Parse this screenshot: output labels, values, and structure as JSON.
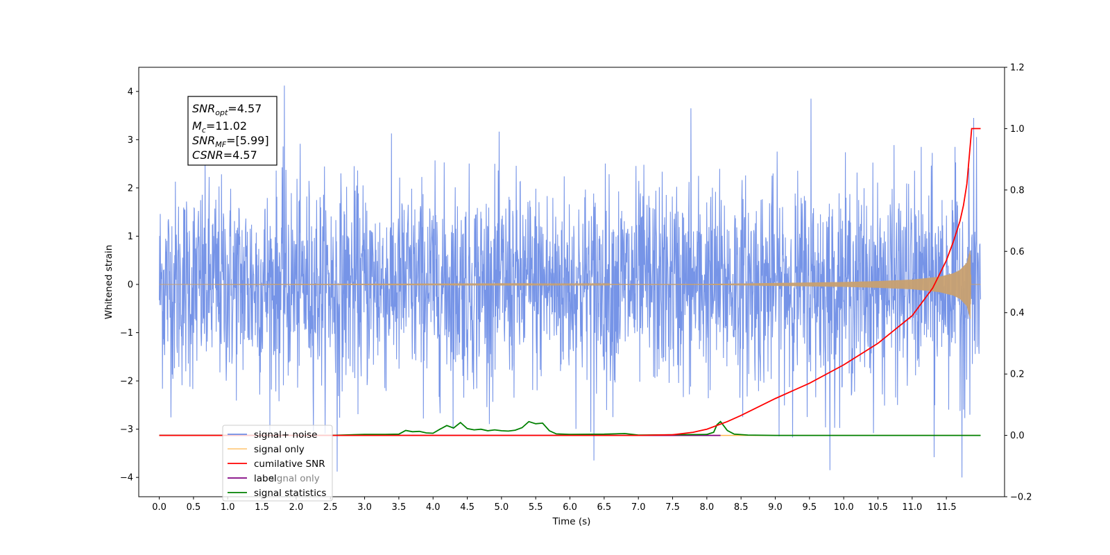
{
  "chart_data": {
    "type": "line",
    "xlabel": "Time (s)",
    "ylabel": "Whitened strain",
    "xlim": [
      -0.3,
      12.35
    ],
    "ylim": [
      -4.4,
      4.5
    ],
    "y2lim": [
      -0.2,
      1.2
    ],
    "x_ticks": [
      0.0,
      0.5,
      1.0,
      1.5,
      2.0,
      2.5,
      3.0,
      3.5,
      4.0,
      4.5,
      5.0,
      5.5,
      6.0,
      6.5,
      7.0,
      7.5,
      8.0,
      8.5,
      9.0,
      9.5,
      10.0,
      10.5,
      11.0,
      11.5
    ],
    "x_tick_labels": [
      "0.0",
      "0.5",
      "1.0",
      "1.5",
      "2.0",
      "2.5",
      "3.0",
      "3.5",
      "4.0",
      "4.5",
      "5.0",
      "5.5",
      "6.0",
      "6.5",
      "7.0",
      "7.5",
      "8.0",
      "8.5",
      "9.0",
      "9.5",
      "10.0",
      "10.5",
      "11.0",
      "11.5"
    ],
    "y_ticks": [
      -4,
      -3,
      -2,
      -1,
      0,
      1,
      2,
      3,
      4
    ],
    "y_tick_labels": [
      "−4",
      "−3",
      "−2",
      "−1",
      "0",
      "1",
      "2",
      "3",
      "4"
    ],
    "y2_ticks": [
      -0.2,
      0.0,
      0.2,
      0.4,
      0.6,
      0.8,
      1.0,
      1.2
    ],
    "y2_tick_labels": [
      "−0.2",
      "0.0",
      "0.2",
      "0.4",
      "0.6",
      "0.8",
      "1.0",
      "1.2"
    ],
    "grid": false,
    "legend_position": "lower-left",
    "series": [
      {
        "name": "signal+ noise",
        "axis": "left",
        "color": "#6f8ee6",
        "x_range": [
          0.0,
          12.0
        ],
        "description_values": {
          "typical_amplitude_range": [
            -2.5,
            2.5
          ],
          "peak_max": 4.12,
          "peak_min": -4.0
        },
        "notable_peaks": [
          [
            1.83,
            4.12
          ],
          [
            11.73,
            -4.0
          ],
          [
            2.6,
            -3.88
          ],
          [
            9.8,
            -3.85
          ],
          [
            6.35,
            -3.65
          ],
          [
            11.32,
            -3.58
          ],
          [
            7.77,
            3.65
          ],
          [
            9.52,
            3.85
          ],
          [
            11.9,
            3.45
          ]
        ]
      },
      {
        "name": "signal only",
        "axis": "left",
        "color": "#ffb74d",
        "x_range": [
          0.0,
          12.0
        ],
        "envelope": [
          [
            0.0,
            0.0
          ],
          [
            8.0,
            0.01
          ],
          [
            9.0,
            0.03
          ],
          [
            10.0,
            0.05
          ],
          [
            10.5,
            0.07
          ],
          [
            11.0,
            0.1
          ],
          [
            11.4,
            0.16
          ],
          [
            11.6,
            0.23
          ],
          [
            11.7,
            0.3
          ],
          [
            11.8,
            0.45
          ],
          [
            11.85,
            0.72
          ],
          [
            11.86,
            0.0
          ],
          [
            12.0,
            0.0
          ]
        ]
      },
      {
        "name": "cumilative SNR",
        "axis": "right",
        "color": "#ff0000",
        "x": [
          0.0,
          7.0,
          7.5,
          7.8,
          8.0,
          8.3,
          8.5,
          9.0,
          9.5,
          10.0,
          10.5,
          11.0,
          11.3,
          11.5,
          11.6,
          11.7,
          11.75,
          11.8,
          11.85,
          11.87,
          12.0
        ],
        "y": [
          0.0,
          0.0,
          0.002,
          0.01,
          0.02,
          0.045,
          0.065,
          0.12,
          0.17,
          0.23,
          0.3,
          0.39,
          0.48,
          0.57,
          0.63,
          0.7,
          0.75,
          0.82,
          0.95,
          1.0,
          1.0
        ]
      },
      {
        "name": "label",
        "axis": "right",
        "color": "#800080",
        "x": [
          0.0,
          8.2
        ],
        "y": [
          0.0,
          0.0
        ]
      },
      {
        "name": "signal only",
        "axis": "right",
        "color": "#ffb74d",
        "hidden_behind_legend": true,
        "x": [
          0.0,
          12.0
        ],
        "y": [
          0.0,
          0.0
        ]
      },
      {
        "name": "signal statistics",
        "axis": "right",
        "color": "#008000",
        "x": [
          0.0,
          2.5,
          3.0,
          3.3,
          3.5,
          3.6,
          3.7,
          3.8,
          3.9,
          4.0,
          4.1,
          4.2,
          4.3,
          4.4,
          4.5,
          4.6,
          4.7,
          4.8,
          4.9,
          5.0,
          5.1,
          5.2,
          5.3,
          5.4,
          5.5,
          5.6,
          5.7,
          5.8,
          6.0,
          6.5,
          6.8,
          7.0,
          8.0,
          8.1,
          8.15,
          8.2,
          8.3,
          8.4,
          8.6,
          9.0,
          12.0
        ],
        "y": [
          0.0,
          0.0,
          0.003,
          0.003,
          0.004,
          0.016,
          0.012,
          0.013,
          0.008,
          0.007,
          0.02,
          0.032,
          0.024,
          0.042,
          0.022,
          0.018,
          0.02,
          0.015,
          0.018,
          0.015,
          0.014,
          0.017,
          0.025,
          0.045,
          0.038,
          0.04,
          0.015,
          0.005,
          0.003,
          0.004,
          0.006,
          0.001,
          0.003,
          0.01,
          0.035,
          0.045,
          0.016,
          0.004,
          0.001,
          0.0,
          0.0
        ]
      }
    ],
    "annotation": {
      "lines": [
        {
          "sym": "SNR",
          "sub": "opt",
          "rest": "=4.57"
        },
        {
          "sym": "M",
          "sub": "c",
          "rest": "=11.02"
        },
        {
          "sym": "SNR",
          "sub": "MF",
          "rest": "=[5.99]"
        },
        {
          "sym": "CSNR",
          "sub": "",
          "rest": "=4.57"
        }
      ]
    },
    "legend": [
      "signal+ noise",
      "signal only",
      "cumilative SNR",
      "label",
      "signal statistics"
    ],
    "legend_hidden_entry": "signal only",
    "legend_colors": [
      "#6f8ee6",
      "#ffcc80",
      "#ff0000",
      "#800080",
      "#008000"
    ]
  }
}
